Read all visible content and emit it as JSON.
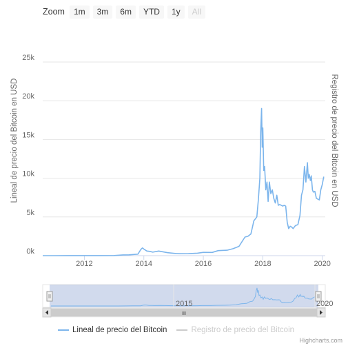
{
  "zoom": {
    "label": "Zoom",
    "buttons": [
      {
        "label": "1m",
        "enabled": true
      },
      {
        "label": "3m",
        "enabled": true
      },
      {
        "label": "6m",
        "enabled": true
      },
      {
        "label": "YTD",
        "enabled": true
      },
      {
        "label": "1y",
        "enabled": true
      },
      {
        "label": "All",
        "enabled": false
      }
    ]
  },
  "legend": {
    "items": [
      {
        "label": "Lineal de precio del Bitcoin",
        "color": "#7cb5ec",
        "visible": true
      },
      {
        "label": "Registro de precio del Bitcoin",
        "color": "#cccccc",
        "visible": false
      }
    ]
  },
  "credits": "Highcharts.com",
  "navigator": {
    "labels": [
      "2015",
      "2020"
    ],
    "scroll_grip": "III"
  },
  "chart_data": {
    "type": "line",
    "ylabel_left": "Lineal de precio del Bitcoin en USD",
    "ylabel_right": "Registro de precio del Bitcoin en USD",
    "ylim": [
      0,
      25000
    ],
    "yticks": [
      0,
      5000,
      10000,
      15000,
      20000,
      25000
    ],
    "ytick_labels": [
      "0k",
      "5k",
      "10k",
      "15k",
      "20k",
      "25k"
    ],
    "xlim": [
      2010.6,
      2020.1
    ],
    "xticks": [
      2012,
      2014,
      2016,
      2018,
      2020
    ],
    "xtick_labels": [
      "2012",
      "2014",
      "2016",
      "2018",
      "2020"
    ],
    "grid": true,
    "series": [
      {
        "name": "Lineal de precio del Bitcoin",
        "color": "#7cb5ec",
        "x": [
          2010.6,
          2011.0,
          2011.45,
          2011.7,
          2012.0,
          2012.5,
          2013.0,
          2013.3,
          2013.5,
          2013.8,
          2013.9,
          2013.95,
          2014.0,
          2014.1,
          2014.2,
          2014.3,
          2014.5,
          2014.8,
          2015.0,
          2015.2,
          2015.5,
          2015.8,
          2016.0,
          2016.3,
          2016.5,
          2016.8,
          2017.0,
          2017.2,
          2017.4,
          2017.5,
          2017.6,
          2017.7,
          2017.8,
          2017.85,
          2017.9,
          2017.93,
          2017.96,
          2017.98,
          2018.0,
          2018.03,
          2018.06,
          2018.1,
          2018.14,
          2018.18,
          2018.22,
          2018.27,
          2018.32,
          2018.37,
          2018.42,
          2018.47,
          2018.52,
          2018.57,
          2018.62,
          2018.67,
          2018.72,
          2018.77,
          2018.82,
          2018.87,
          2018.92,
          2018.97,
          2019.02,
          2019.1,
          2019.18,
          2019.25,
          2019.3,
          2019.35,
          2019.4,
          2019.45,
          2019.5,
          2019.53,
          2019.56,
          2019.6,
          2019.63,
          2019.67,
          2019.7,
          2019.75,
          2019.8,
          2019.85,
          2019.9,
          2019.95,
          2020.0,
          2020.05
        ],
        "values": [
          0,
          0,
          10,
          5,
          5,
          10,
          15,
          100,
          110,
          200,
          800,
          1000,
          850,
          600,
          550,
          450,
          600,
          380,
          300,
          250,
          260,
          320,
          430,
          420,
          650,
          700,
          900,
          1200,
          2400,
          2500,
          2800,
          4500,
          5000,
          7200,
          10000,
          16000,
          19000,
          14000,
          16500,
          11000,
          11500,
          8500,
          9500,
          7000,
          9500,
          8000,
          8500,
          7400,
          6800,
          7800,
          6500,
          6600,
          6500,
          6400,
          6500,
          6400,
          4300,
          3500,
          3800,
          3700,
          3500,
          3900,
          4000,
          5200,
          7800,
          8500,
          11500,
          9500,
          12000,
          10000,
          10500,
          9700,
          10300,
          8500,
          8200,
          8300,
          7400,
          7300,
          7200,
          8500,
          9200,
          10200
        ]
      }
    ]
  }
}
